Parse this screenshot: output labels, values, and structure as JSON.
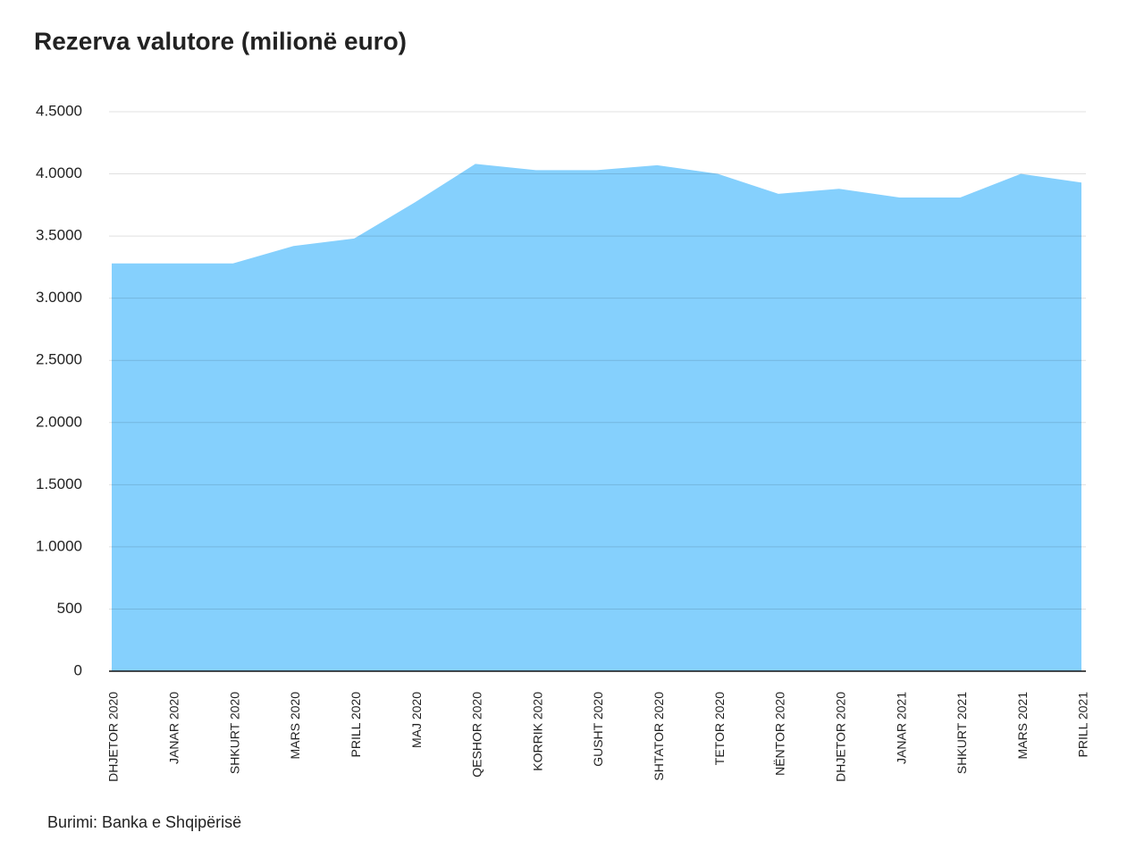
{
  "chart_data": {
    "type": "area",
    "title": "Rezerva valutore (milionë euro)",
    "source": "Burimi: Banka e Shqipërisë",
    "categories": [
      "DHJETOR 2020",
      "JANAR 2020",
      "SHKURT 2020",
      "MARS 2020",
      "PRILL 2020",
      "MAJ 2020",
      "QESHOR 2020",
      "KORRIK 2020",
      "GUSHT 2020",
      "SHTATOR 2020",
      "TETOR 2020",
      "NËNTOR 2020",
      "DHJETOR 2020",
      "JANAR 2021",
      "SHKURT 2021",
      "MARS 2021",
      "PRILL 2021"
    ],
    "values": [
      3280,
      3280,
      3280,
      3420,
      3480,
      3770,
      4080,
      4030,
      4030,
      4070,
      4000,
      3840,
      3880,
      3810,
      3810,
      4000,
      3930
    ],
    "color": "#85d0fd",
    "ylim": [
      0,
      4500
    ],
    "yticks": [
      0,
      500,
      {
        "value": 1000,
        "label": "1.0000"
      },
      {
        "value": 1500,
        "label": "1.5000"
      },
      {
        "value": 2000,
        "label": "2.0000"
      },
      {
        "value": 2500,
        "label": "2.5000"
      },
      {
        "value": 3000,
        "label": "3.0000"
      },
      {
        "value": 3500,
        "label": "3.5000"
      },
      {
        "value": 4000,
        "label": "4.0000"
      },
      {
        "value": 4500,
        "label": "4.5000"
      }
    ],
    "grid": true
  }
}
